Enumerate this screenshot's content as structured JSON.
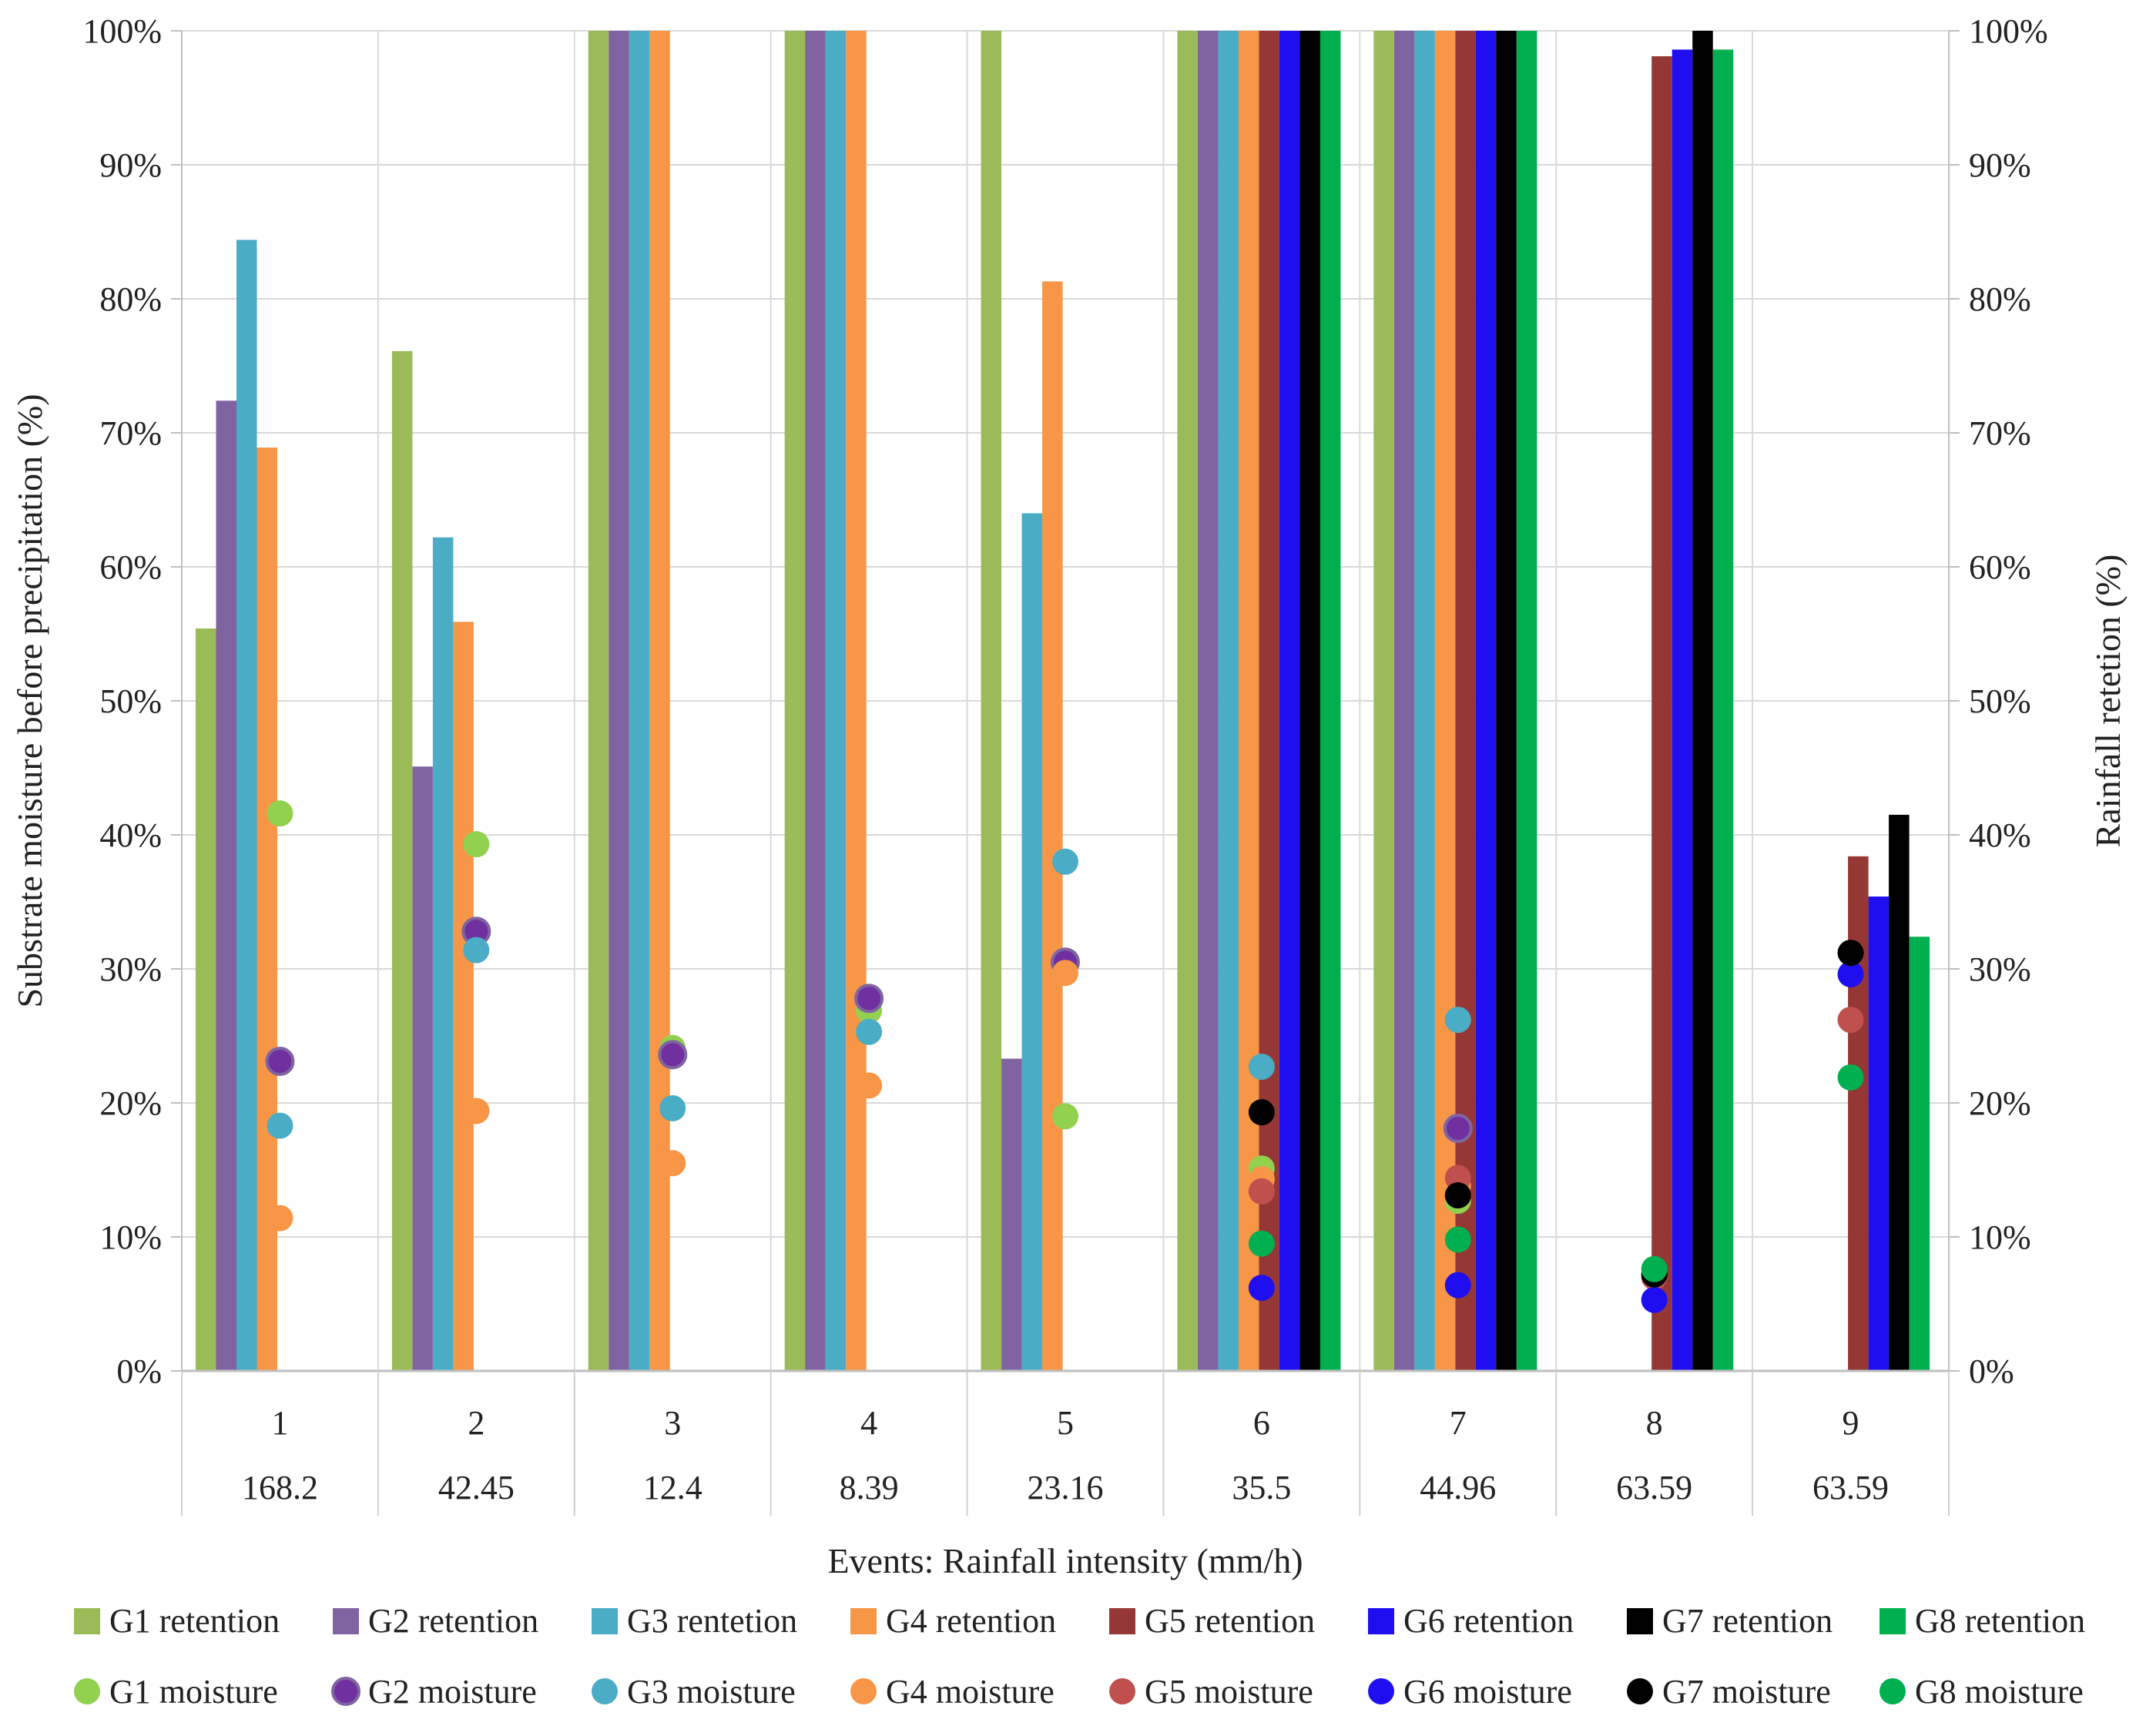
{
  "chart_data": {
    "type": "bar",
    "xlabel": "Events: Rainfall intensity (mm/h)",
    "ylabel_left": "Substrate moisture before precipitation (%)",
    "ylabel_right": "Rainfall retetion (%)",
    "ylim": [
      0,
      100
    ],
    "y_ticks": [
      "0%",
      "10%",
      "20%",
      "30%",
      "40%",
      "50%",
      "60%",
      "70%",
      "80%",
      "90%",
      "100%"
    ],
    "events": [
      "1",
      "2",
      "3",
      "4",
      "5",
      "6",
      "7",
      "8",
      "9"
    ],
    "intensities": [
      "168.2",
      "42.45",
      "12.4",
      "8.39",
      "23.16",
      "35.5",
      "44.96",
      "63.59",
      "63.59"
    ],
    "bar_series": [
      {
        "name": "G1 retention",
        "color": "#9bbb59",
        "values": [
          55.4,
          76.1,
          100,
          100,
          100,
          100,
          100,
          null,
          null
        ]
      },
      {
        "name": "G2 retention",
        "color": "#8064a2",
        "values": [
          72.4,
          45.1,
          100,
          100,
          23.3,
          100,
          100,
          null,
          null
        ]
      },
      {
        "name": "G3 rentetion",
        "color": "#4bacc6",
        "values": [
          84.4,
          62.2,
          100,
          100,
          64.0,
          100,
          100,
          null,
          null
        ]
      },
      {
        "name": "G4 retention",
        "color": "#f79646",
        "values": [
          68.9,
          55.9,
          100,
          100,
          81.3,
          100,
          100,
          null,
          null
        ]
      },
      {
        "name": "G5 retention",
        "color": "#953735",
        "values": [
          null,
          null,
          null,
          null,
          null,
          100,
          100,
          98.1,
          38.4
        ]
      },
      {
        "name": "G6 retention",
        "color": "#1f0ff0",
        "values": [
          null,
          null,
          null,
          null,
          null,
          100,
          100,
          98.6,
          35.4
        ]
      },
      {
        "name": "G7 retention",
        "color": "#000000",
        "values": [
          null,
          null,
          null,
          null,
          null,
          100,
          100,
          100,
          41.5
        ]
      },
      {
        "name": "G8 retention",
        "color": "#00b050",
        "values": [
          null,
          null,
          null,
          null,
          null,
          100,
          100,
          98.6,
          32.4
        ]
      }
    ],
    "moisture_series": [
      {
        "name": "G1 moisture",
        "color": "#92d050",
        "values": [
          41.6,
          39.3,
          24.1,
          26.9,
          19.0,
          15.1,
          12.7,
          null,
          null
        ]
      },
      {
        "name": "G2 moisture",
        "color": "#7030a0",
        "values": [
          23.1,
          32.8,
          23.6,
          27.8,
          30.5,
          null,
          18.1,
          null,
          null
        ]
      },
      {
        "name": "G3 moisture",
        "color": "#4bacc6",
        "values": [
          18.3,
          31.4,
          19.6,
          25.3,
          38.0,
          22.7,
          26.2,
          null,
          null
        ]
      },
      {
        "name": "G4 moisture",
        "color": "#f79646",
        "values": [
          11.4,
          19.4,
          15.5,
          21.3,
          29.7,
          14.3,
          13.8,
          null,
          null
        ]
      },
      {
        "name": "G5 moisture",
        "color": "#c0504d",
        "values": [
          null,
          null,
          null,
          null,
          null,
          13.4,
          14.4,
          7.0,
          26.2
        ]
      },
      {
        "name": "G6 moisture",
        "color": "#1f0ff0",
        "values": [
          null,
          null,
          null,
          null,
          null,
          6.2,
          6.4,
          5.3,
          29.6
        ]
      },
      {
        "name": "G7 moisture",
        "color": "#000000",
        "values": [
          null,
          null,
          null,
          null,
          null,
          19.3,
          13.1,
          7.2,
          31.2
        ]
      },
      {
        "name": "G8 moisture",
        "color": "#00b050",
        "values": [
          null,
          null,
          null,
          null,
          null,
          9.5,
          9.8,
          7.6,
          21.9
        ]
      }
    ]
  }
}
